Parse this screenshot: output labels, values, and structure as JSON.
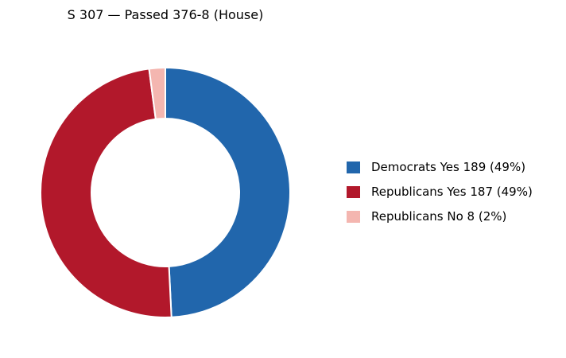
{
  "chart_data": {
    "type": "pie",
    "title": "S 307 — Passed 376-8 (House)",
    "donut": true,
    "legend_position": "right",
    "slices": [
      {
        "label": "Democrats Yes",
        "value": 189,
        "percent_label": "(49%)",
        "color": "#2166ac"
      },
      {
        "label": "Republicans Yes",
        "value": 187,
        "percent_label": "(49%)",
        "color": "#b2182b"
      },
      {
        "label": "Republicans No",
        "value": 8,
        "percent_label": "(2%)",
        "color": "#f4b6b0"
      }
    ]
  }
}
